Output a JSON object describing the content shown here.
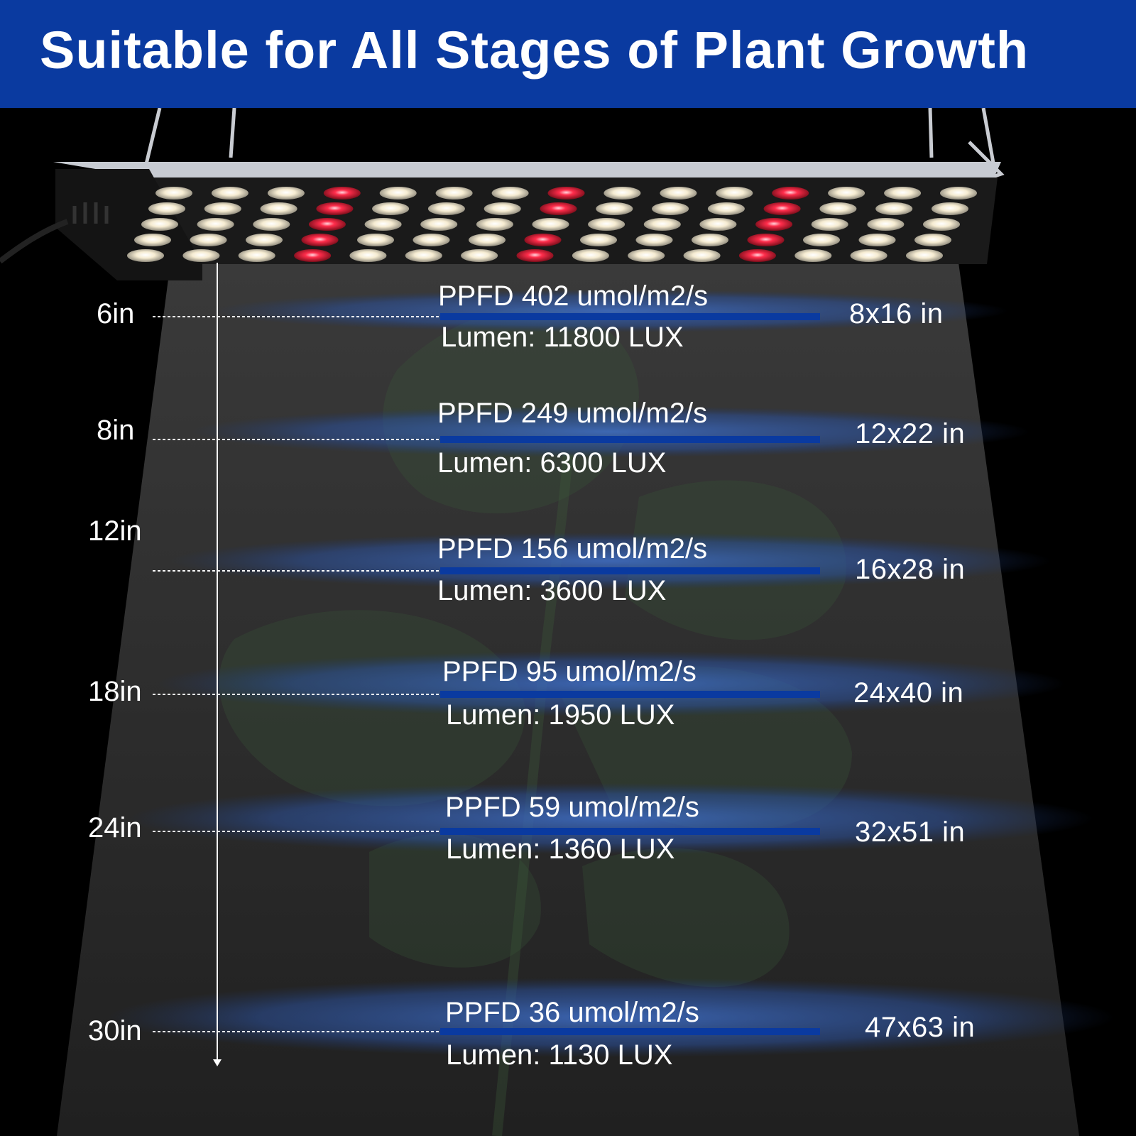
{
  "title": "Suitable for All Stages of Plant Growth",
  "colors": {
    "banner": "#0a3aa0",
    "underline": "#0a3aa0",
    "red_led": "#e0203a",
    "white_led": "#f4ecd6"
  },
  "levels": [
    {
      "distance": "6in",
      "ppfd": "PPFD 402  umol/m2/s",
      "lumen": "Lumen: 11800 LUX",
      "coverage": "8x16 in"
    },
    {
      "distance": "8in",
      "ppfd": "PPFD 249  umol/m2/s",
      "lumen": "Lumen: 6300 LUX",
      "coverage": "12x22 in"
    },
    {
      "distance": "12in",
      "ppfd": "PPFD 156  umol/m2/s",
      "lumen": "Lumen: 3600 LUX",
      "coverage": "16x28 in"
    },
    {
      "distance": "18in",
      "ppfd": "PPFD 95  umol/m2/s",
      "lumen": "Lumen: 1950 LUX",
      "coverage": "24x40 in"
    },
    {
      "distance": "24in",
      "ppfd": "PPFD 59  umol/m2/s",
      "lumen": "Lumen: 1360 LUX",
      "coverage": "32x51 in"
    },
    {
      "distance": "30in",
      "ppfd": "PPFD 36  umol/m2/s",
      "lumen": "Lumen: 1130 LUX",
      "coverage": "47x63 in"
    }
  ]
}
